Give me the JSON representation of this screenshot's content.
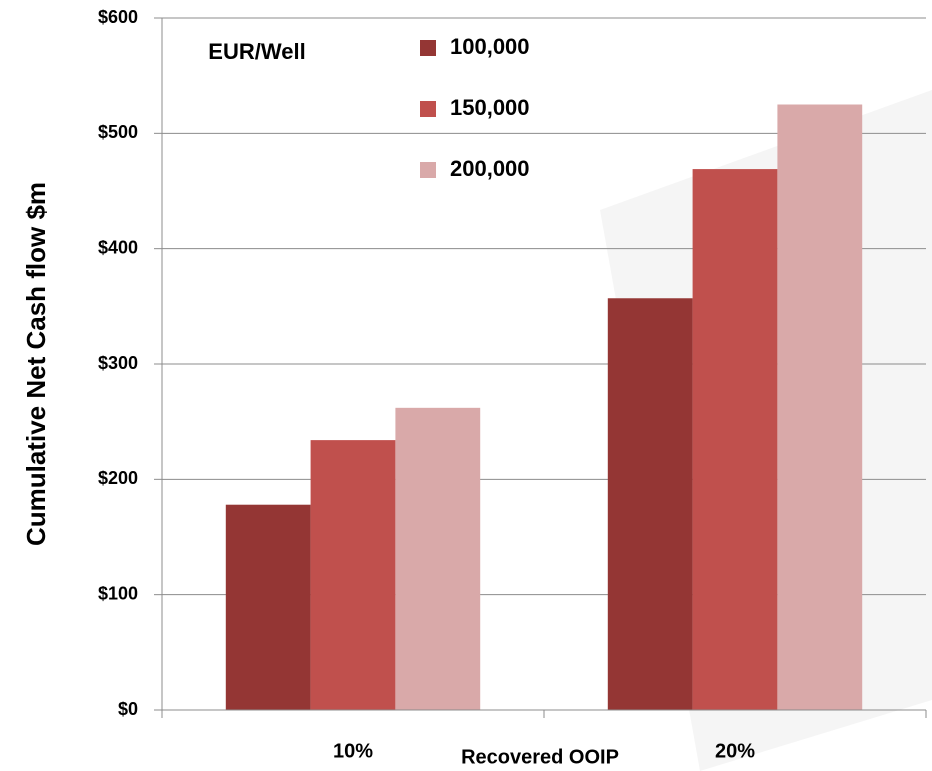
{
  "chart_data": {
    "type": "bar",
    "y_label": "Cumulative Net Cash flow $m",
    "x_label": "Recovered OOIP",
    "legend_title": "EUR/Well",
    "categories": [
      "10%",
      "20%"
    ],
    "series": [
      {
        "name": "100,000",
        "color": "#943634",
        "values": [
          178,
          357
        ]
      },
      {
        "name": "150,000",
        "color": "#c0504d",
        "values": [
          234,
          469
        ]
      },
      {
        "name": "200,000",
        "color": "#d9a9a9",
        "values": [
          262,
          525
        ]
      }
    ],
    "ylim": [
      0,
      600
    ],
    "yticks": [
      {
        "value": 0,
        "label": "$0"
      },
      {
        "value": 100,
        "label": "$100"
      },
      {
        "value": 200,
        "label": "$200"
      },
      {
        "value": 300,
        "label": "$300"
      },
      {
        "value": 400,
        "label": "$400"
      },
      {
        "value": 500,
        "label": "$500"
      },
      {
        "value": 600,
        "label": "$600"
      }
    ],
    "grid": true
  }
}
